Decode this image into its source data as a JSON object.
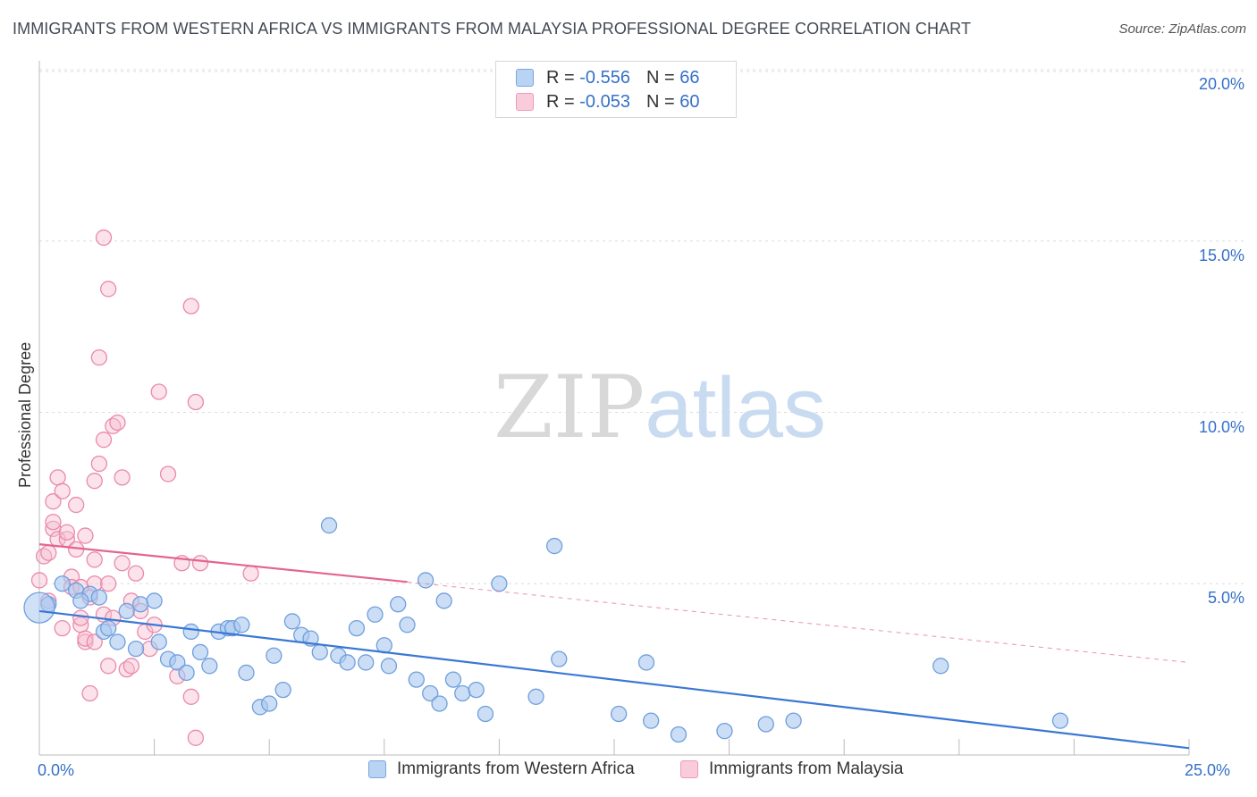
{
  "title": "IMMIGRANTS FROM WESTERN AFRICA VS IMMIGRANTS FROM MALAYSIA PROFESSIONAL DEGREE CORRELATION CHART",
  "source": "Source: ZipAtlas.com",
  "watermark": {
    "zip": "ZIP",
    "atlas": "atlas"
  },
  "legend_top": {
    "blue": {
      "r_label": "R =",
      "r_value": "-0.556",
      "n_label": "N =",
      "n_value": "66"
    },
    "pink": {
      "r_label": "R =",
      "r_value": "-0.053",
      "n_label": "N =",
      "n_value": "60"
    }
  },
  "colors": {
    "blue_fill": "#a9c8f0",
    "blue_stroke": "#6f9fdc",
    "blue_line": "#3a78d4",
    "pink_fill": "#f7bfd2",
    "pink_stroke": "#ea8aaa",
    "pink_line": "#e3658e"
  },
  "chart_data": {
    "type": "scatter",
    "title": "IMMIGRANTS FROM WESTERN AFRICA VS IMMIGRANTS FROM MALAYSIA PROFESSIONAL DEGREE CORRELATION CHART",
    "xlabel": "",
    "ylabel": "Professional Degree",
    "xlim": [
      0,
      25
    ],
    "ylim": [
      0,
      20
    ],
    "x_tick_labels": [
      "0.0%",
      "25.0%"
    ],
    "y_ticks": [
      5,
      10,
      15,
      20
    ],
    "y_tick_labels": [
      "5.0%",
      "10.0%",
      "15.0%",
      "20.0%"
    ],
    "series": [
      {
        "name": "Immigrants from Western Africa",
        "color": "blue",
        "trend": {
          "x": [
            0,
            25
          ],
          "y": [
            4.2,
            0.2
          ],
          "style": "solid"
        },
        "points": [
          [
            0.2,
            4.4
          ],
          [
            0.5,
            5.0
          ],
          [
            0.8,
            4.8
          ],
          [
            1.1,
            4.7
          ],
          [
            0.9,
            4.5
          ],
          [
            1.3,
            4.6
          ],
          [
            1.4,
            3.6
          ],
          [
            1.5,
            3.7
          ],
          [
            1.7,
            3.3
          ],
          [
            1.9,
            4.2
          ],
          [
            2.1,
            3.1
          ],
          [
            2.2,
            4.4
          ],
          [
            2.5,
            4.5
          ],
          [
            2.6,
            3.3
          ],
          [
            2.8,
            2.8
          ],
          [
            3.0,
            2.7
          ],
          [
            3.2,
            2.4
          ],
          [
            3.3,
            3.6
          ],
          [
            3.5,
            3.0
          ],
          [
            3.7,
            2.6
          ],
          [
            3.9,
            3.6
          ],
          [
            4.1,
            3.7
          ],
          [
            4.2,
            3.7
          ],
          [
            4.4,
            3.8
          ],
          [
            4.5,
            2.4
          ],
          [
            4.8,
            1.4
          ],
          [
            5.0,
            1.5
          ],
          [
            5.1,
            2.9
          ],
          [
            5.3,
            1.9
          ],
          [
            5.5,
            3.9
          ],
          [
            5.7,
            3.5
          ],
          [
            5.9,
            3.4
          ],
          [
            6.1,
            3.0
          ],
          [
            6.3,
            6.7
          ],
          [
            6.5,
            2.9
          ],
          [
            6.7,
            2.7
          ],
          [
            6.9,
            3.7
          ],
          [
            7.1,
            2.7
          ],
          [
            7.3,
            4.1
          ],
          [
            7.5,
            3.2
          ],
          [
            7.6,
            2.6
          ],
          [
            7.8,
            4.4
          ],
          [
            8.0,
            3.8
          ],
          [
            8.2,
            2.2
          ],
          [
            8.4,
            5.1
          ],
          [
            8.5,
            1.8
          ],
          [
            8.7,
            1.5
          ],
          [
            8.8,
            4.5
          ],
          [
            9.0,
            2.2
          ],
          [
            9.2,
            1.8
          ],
          [
            9.5,
            1.9
          ],
          [
            9.7,
            1.2
          ],
          [
            10.0,
            5.0
          ],
          [
            10.8,
            1.7
          ],
          [
            11.2,
            6.1
          ],
          [
            11.3,
            2.8
          ],
          [
            12.6,
            1.2
          ],
          [
            13.2,
            2.7
          ],
          [
            13.3,
            1.0
          ],
          [
            13.9,
            0.6
          ],
          [
            14.9,
            0.7
          ],
          [
            15.8,
            0.9
          ],
          [
            16.4,
            1.0
          ],
          [
            19.6,
            2.6
          ],
          [
            22.2,
            1.0
          ],
          [
            0.0,
            4.3
          ]
        ]
      },
      {
        "name": "Immigrants from Malaysia",
        "color": "pink",
        "trend": {
          "x": [
            0,
            8.0
          ],
          "y": [
            6.15,
            5.05
          ],
          "style": "solid",
          "extension": {
            "x": [
              8.0,
              25
            ],
            "y": [
              5.05,
              2.7
            ],
            "style": "dashed"
          }
        },
        "points": [
          [
            0.0,
            5.1
          ],
          [
            0.1,
            5.8
          ],
          [
            0.2,
            4.5
          ],
          [
            0.2,
            5.9
          ],
          [
            0.3,
            6.6
          ],
          [
            0.3,
            6.8
          ],
          [
            0.3,
            7.4
          ],
          [
            0.4,
            8.1
          ],
          [
            0.4,
            6.3
          ],
          [
            0.5,
            7.7
          ],
          [
            0.5,
            3.7
          ],
          [
            0.6,
            6.3
          ],
          [
            0.6,
            6.5
          ],
          [
            0.7,
            5.2
          ],
          [
            0.7,
            4.9
          ],
          [
            0.8,
            7.3
          ],
          [
            0.8,
            6.0
          ],
          [
            0.9,
            3.8
          ],
          [
            0.9,
            4.0
          ],
          [
            1.0,
            6.4
          ],
          [
            1.0,
            3.3
          ],
          [
            1.0,
            3.4
          ],
          [
            1.1,
            1.8
          ],
          [
            1.2,
            5.7
          ],
          [
            1.2,
            5.0
          ],
          [
            1.2,
            3.3
          ],
          [
            1.2,
            8.0
          ],
          [
            1.3,
            8.5
          ],
          [
            1.3,
            11.6
          ],
          [
            1.4,
            15.1
          ],
          [
            1.4,
            4.1
          ],
          [
            1.4,
            9.2
          ],
          [
            1.5,
            13.6
          ],
          [
            1.5,
            5.0
          ],
          [
            1.5,
            2.6
          ],
          [
            1.6,
            4.0
          ],
          [
            1.6,
            9.6
          ],
          [
            1.7,
            9.7
          ],
          [
            1.8,
            5.6
          ],
          [
            1.8,
            8.1
          ],
          [
            1.9,
            2.5
          ],
          [
            2.0,
            4.5
          ],
          [
            2.0,
            2.6
          ],
          [
            2.1,
            5.3
          ],
          [
            2.2,
            4.2
          ],
          [
            2.3,
            3.6
          ],
          [
            2.4,
            3.1
          ],
          [
            2.5,
            3.8
          ],
          [
            2.6,
            10.6
          ],
          [
            2.8,
            8.2
          ],
          [
            3.0,
            2.3
          ],
          [
            3.1,
            5.6
          ],
          [
            3.3,
            1.7
          ],
          [
            3.3,
            13.1
          ],
          [
            3.4,
            0.5
          ],
          [
            3.4,
            10.3
          ],
          [
            3.5,
            5.6
          ],
          [
            4.6,
            5.3
          ],
          [
            0.9,
            4.9
          ],
          [
            1.1,
            4.6
          ]
        ]
      }
    ],
    "legend": [
      "Immigrants from Western Africa",
      "Immigrants from Malaysia"
    ],
    "legend_placement": "bottom-center"
  }
}
